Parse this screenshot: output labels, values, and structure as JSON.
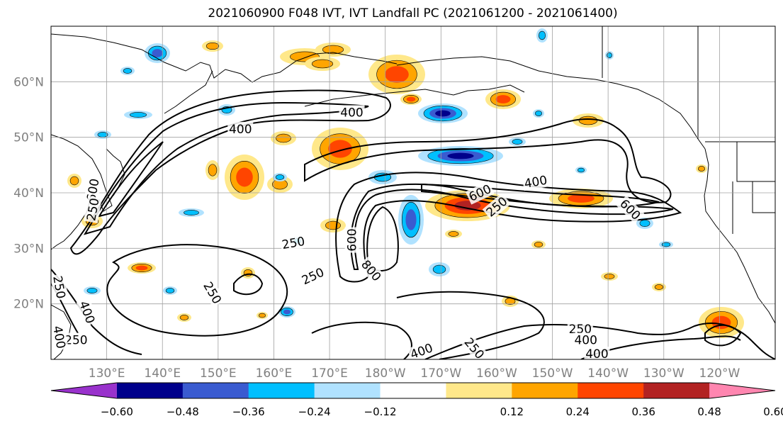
{
  "chart_data": {
    "type": "heatmap",
    "title": "2021060900 F048 IVT, IVT Landfall PC (2021061200 - 2021061400)",
    "x_ticks": [
      "130°E",
      "140°E",
      "150°E",
      "160°E",
      "170°E",
      "180°W",
      "170°W",
      "160°W",
      "150°W",
      "140°W",
      "130°W",
      "120°W"
    ],
    "x_tick_lon": [
      130,
      140,
      150,
      160,
      170,
      180,
      190,
      200,
      210,
      220,
      230,
      240
    ],
    "y_ticks": [
      "20°N",
      "30°N",
      "40°N",
      "50°N",
      "60°N"
    ],
    "y_tick_lat": [
      20,
      30,
      40,
      50,
      60
    ],
    "xlim": [
      120,
      250
    ],
    "ylim": [
      10,
      70
    ],
    "grid": true,
    "colorbar": {
      "orientation": "horizontal",
      "tick_labels": [
        "−0.60",
        "−0.48",
        "−0.36",
        "−0.24",
        "−0.12",
        "0.12",
        "0.24",
        "0.36",
        "0.48",
        "0.60"
      ],
      "bins": [
        {
          "from": null,
          "to": -0.6,
          "color": "#9932cc"
        },
        {
          "from": -0.6,
          "to": -0.48,
          "color": "#00008b"
        },
        {
          "from": -0.48,
          "to": -0.36,
          "color": "#3a5bd0"
        },
        {
          "from": -0.36,
          "to": -0.24,
          "color": "#00bfff"
        },
        {
          "from": -0.24,
          "to": -0.12,
          "color": "#b0e2ff"
        },
        {
          "from": -0.12,
          "to": 0.12,
          "color": "#ffffff"
        },
        {
          "from": 0.12,
          "to": 0.24,
          "color": "#ffe88a"
        },
        {
          "from": 0.24,
          "to": 0.36,
          "color": "#ffa500"
        },
        {
          "from": 0.36,
          "to": 0.48,
          "color": "#ff4500"
        },
        {
          "from": 0.48,
          "to": 0.6,
          "color": "#b22222"
        },
        {
          "from": 0.6,
          "to": null,
          "color": "#ff86b0"
        }
      ]
    },
    "ivt_contour_labels": [
      {
        "text": "400",
        "lon": 154,
        "lat": 51.5,
        "rot": 0
      },
      {
        "text": "400",
        "lon": 174,
        "lat": 54.5,
        "rot": 0
      },
      {
        "text": "400",
        "lon": 207,
        "lat": 42,
        "rot": 10
      },
      {
        "text": "600",
        "lon": 197,
        "lat": 40,
        "rot": 25
      },
      {
        "text": "250",
        "lon": 200,
        "lat": 37.5,
        "rot": 40
      },
      {
        "text": "600",
        "lon": 224,
        "lat": 37,
        "rot": -45
      },
      {
        "text": "250",
        "lon": 163.5,
        "lat": 31,
        "rot": 10
      },
      {
        "text": "250",
        "lon": 167,
        "lat": 25,
        "rot": 25
      },
      {
        "text": "250",
        "lon": 149,
        "lat": 22,
        "rot": -60
      },
      {
        "text": "600",
        "lon": 174,
        "lat": 31.5,
        "rot": 90
      },
      {
        "text": "800",
        "lon": 177.5,
        "lat": 26,
        "rot": -50
      },
      {
        "text": "400",
        "lon": 126.5,
        "lat": 18.5,
        "rot": -70
      },
      {
        "text": "250",
        "lon": 124.5,
        "lat": 13.5,
        "rot": 0
      },
      {
        "text": "250",
        "lon": 215,
        "lat": 15.5,
        "rot": 0
      },
      {
        "text": "400",
        "lon": 216,
        "lat": 13.5,
        "rot": 0
      },
      {
        "text": "400",
        "lon": 218,
        "lat": 11,
        "rot": 0
      },
      {
        "text": "400",
        "lon": 186.5,
        "lat": 11.5,
        "rot": 20
      },
      {
        "text": "250",
        "lon": 196,
        "lat": 12,
        "rot": -50
      },
      {
        "text": "250",
        "lon": 121.5,
        "lat": 23,
        "rot": -80
      },
      {
        "text": "400",
        "lon": 121.5,
        "lat": 14,
        "rot": -80
      },
      {
        "text": "600",
        "lon": 127.5,
        "lat": 40.5,
        "rot": 80
      },
      {
        "text": "250",
        "lon": 127.5,
        "lat": 37,
        "rot": 80
      }
    ]
  }
}
